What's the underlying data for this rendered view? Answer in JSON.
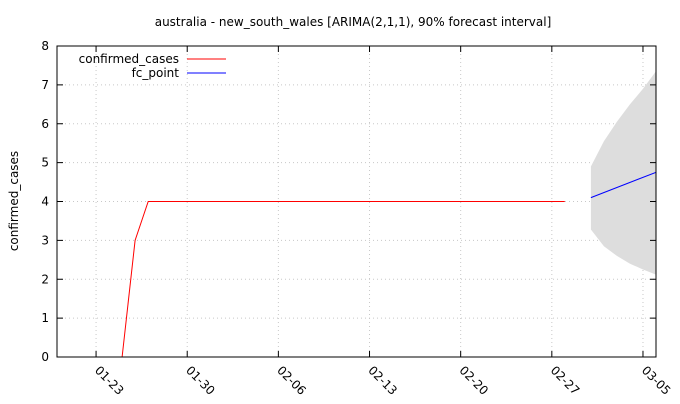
{
  "chart_data": {
    "type": "line",
    "title": "australia - new_south_wales [ARIMA(2,1,1), 90% forecast interval]",
    "xlabel": "",
    "ylabel": "confirmed_cases",
    "xlim": [
      "2020-01-20",
      "2020-03-06"
    ],
    "ylim": [
      0,
      8
    ],
    "yticks": [
      0,
      1,
      2,
      3,
      4,
      5,
      6,
      7,
      8
    ],
    "xticks": [
      {
        "date": "2020-01-23",
        "label": "01-23"
      },
      {
        "date": "2020-01-30",
        "label": "01-30"
      },
      {
        "date": "2020-02-06",
        "label": "02-06"
      },
      {
        "date": "2020-02-13",
        "label": "02-13"
      },
      {
        "date": "2020-02-20",
        "label": "02-20"
      },
      {
        "date": "2020-02-27",
        "label": "02-27"
      },
      {
        "date": "2020-03-05",
        "label": "03-05"
      }
    ],
    "grid": true,
    "legend_position": "top-left",
    "series": [
      {
        "name": "confirmed_cases",
        "color": "#ff0000",
        "points": [
          {
            "x": "2020-01-22",
            "y": 0
          },
          {
            "x": "2020-01-25",
            "y": 0
          },
          {
            "x": "2020-01-26",
            "y": 3
          },
          {
            "x": "2020-01-27",
            "y": 4
          },
          {
            "x": "2020-02-28",
            "y": 4
          }
        ]
      },
      {
        "name": "fc_point",
        "color": "#0000ff",
        "points": [
          {
            "x": "2020-03-01",
            "y": 4.1
          },
          {
            "x": "2020-03-06",
            "y": 4.75
          }
        ]
      }
    ],
    "forecast_interval": {
      "color": "#dddddd",
      "points": [
        {
          "x": "2020-03-01",
          "lower": 3.28,
          "upper": 4.9
        },
        {
          "x": "2020-03-02",
          "lower": 2.85,
          "upper": 5.55
        },
        {
          "x": "2020-03-03",
          "lower": 2.6,
          "upper": 6.05
        },
        {
          "x": "2020-03-04",
          "lower": 2.4,
          "upper": 6.5
        },
        {
          "x": "2020-03-05",
          "lower": 2.25,
          "upper": 6.9
        },
        {
          "x": "2020-03-06",
          "lower": 2.12,
          "upper": 7.35
        }
      ]
    }
  }
}
